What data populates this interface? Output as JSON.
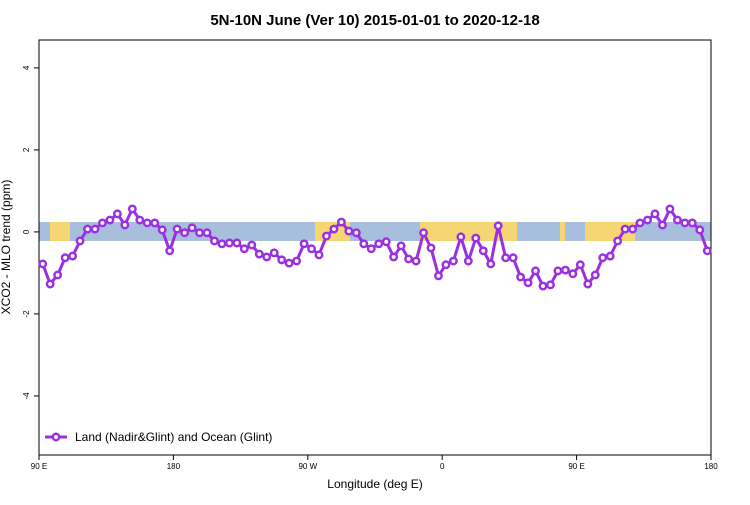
{
  "chart_data": {
    "type": "line",
    "title": "5N-10N June (Ver 10)   2015-01-01 to 2020-12-18",
    "x_label": "Longitude (deg E)",
    "y_label": "XCO2 - MLO trend (ppm)",
    "xlim": [
      90,
      540
    ],
    "ylim": [
      -5.44,
      4.68
    ],
    "xticks": [
      {
        "value": 90,
        "label": "90 E"
      },
      180,
      {
        "value": 270,
        "label": "90 W"
      },
      {
        "value": 360,
        "label": "0"
      },
      {
        "value": 450,
        "label": "90 E"
      },
      {
        "value": 540,
        "label": "180"
      }
    ],
    "yticks": [
      4,
      2,
      0,
      -2,
      -4
    ],
    "legend": "bottom-left",
    "series": [
      {
        "name": "Land (Nadir&Glint) and Ocean (Glint)",
        "color": "#9b30e0",
        "x": [
          92.5,
          97.5,
          102.5,
          107.5,
          112.5,
          117.5,
          122.5,
          127.5,
          132.5,
          137.5,
          142.5,
          147.5,
          152.5,
          157.5,
          162.5,
          167.5,
          172.5,
          177.5,
          182.5,
          187.5,
          192.5,
          197.5,
          202.5,
          207.5,
          212.5,
          217.5,
          222.5,
          227.5,
          232.5,
          237.5,
          242.5,
          247.5,
          252.5,
          257.5,
          262.5,
          267.5,
          272.5,
          277.5,
          282.5,
          287.5,
          292.5,
          297.5,
          302.5,
          307.5,
          312.5,
          317.5,
          322.5,
          327.5,
          332.5,
          337.5,
          342.5,
          347.5,
          352.5,
          357.5,
          362.5,
          367.5,
          372.5,
          377.5,
          382.5,
          387.5,
          392.5,
          397.5,
          402.5,
          407.5,
          412.5,
          417.5,
          422.5,
          427.5,
          432.5,
          437.5,
          442.5,
          447.5,
          452.5,
          457.5,
          462.5,
          467.5,
          472.5,
          477.5,
          482.5,
          487.5,
          492.5,
          497.5,
          502.5,
          507.5,
          512.5,
          517.5,
          522.5,
          527.5,
          532.5,
          537.5
        ],
        "values": [
          -0.78,
          -1.27,
          -1.05,
          -0.63,
          -0.59,
          -0.22,
          0.07,
          0.07,
          0.22,
          0.29,
          0.44,
          0.17,
          0.56,
          0.29,
          0.22,
          0.22,
          0.05,
          -0.46,
          0.07,
          -0.02,
          0.1,
          -0.02,
          -0.02,
          -0.22,
          -0.29,
          -0.27,
          -0.27,
          -0.41,
          -0.32,
          -0.54,
          -0.61,
          -0.51,
          -0.68,
          -0.76,
          -0.71,
          -0.29,
          -0.41,
          -0.56,
          -0.1,
          0.07,
          0.24,
          0.02,
          -0.02,
          -0.29,
          -0.41,
          -0.29,
          -0.24,
          -0.61,
          -0.34,
          -0.66,
          -0.71,
          -0.02,
          -0.39,
          -1.07,
          -0.8,
          -0.71,
          -0.12,
          -0.71,
          -0.15,
          -0.46,
          -0.78,
          0.15,
          -0.63,
          -0.63,
          -1.1,
          -1.24,
          -0.95,
          -1.32,
          -1.29,
          -0.95,
          -0.93,
          -1.02,
          -0.8,
          -1.27,
          -1.05,
          -0.63,
          -0.59,
          -0.22,
          0.07,
          0.07,
          0.22,
          0.29,
          0.44,
          0.17,
          0.56,
          0.29,
          0.22,
          0.22,
          0.05,
          -0.46
        ]
      }
    ]
  }
}
